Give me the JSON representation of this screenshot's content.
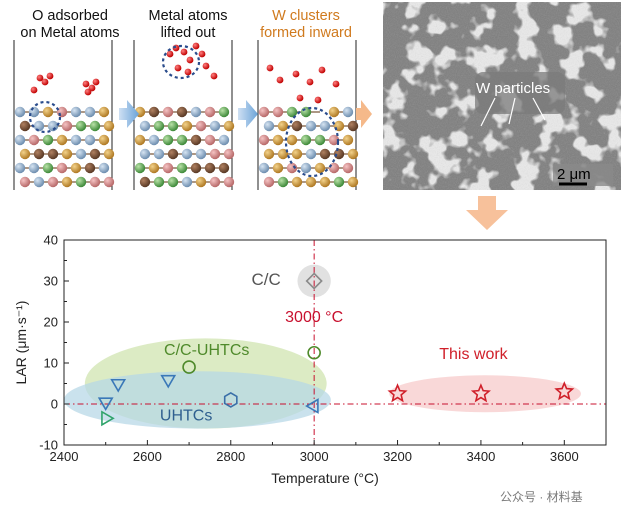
{
  "simulation": {
    "labels": [
      {
        "line1": "O adsorbed",
        "line2": "on Metal atoms"
      },
      {
        "line1": "Metal atoms",
        "line2": "lifted out"
      },
      {
        "line1": "W clusters",
        "line2": "formed inward"
      }
    ],
    "label_colors": [
      "#111111",
      "#111111",
      "#d07a1e"
    ]
  },
  "sem": {
    "annotation": "W particles",
    "scale_bar": "2 μm"
  },
  "watermark": "公众号 · 材料基",
  "chart_data": {
    "type": "scatter",
    "xlabel": "Temperature (°C)",
    "ylabel": "LAR (μm·s⁻¹)",
    "xlim": [
      2400,
      3700
    ],
    "ylim": [
      -10,
      40
    ],
    "xticks": [
      2400,
      2600,
      2800,
      3000,
      3200,
      3400,
      3600
    ],
    "yticks": [
      -10,
      0,
      10,
      20,
      30,
      40
    ],
    "reference_lines": {
      "x": 3000,
      "y": 0,
      "color": "#c8102e"
    },
    "annotations": [
      {
        "text": "3000 °C",
        "x": 3000,
        "y": 20,
        "color": "#c8102e"
      },
      {
        "text": "C/C",
        "x": 2920,
        "y": 29,
        "color": "#555555"
      },
      {
        "text": "C/C-UHTCs",
        "x": 2640,
        "y": 12,
        "color": "#4f8a2b"
      },
      {
        "text": "UHTCs",
        "x": 2630,
        "y": -4,
        "color": "#2f5f8f"
      },
      {
        "text": "This work",
        "x": 3300,
        "y": 11,
        "color": "#d0202a"
      }
    ],
    "series": [
      {
        "name": "C/C",
        "marker": "diamond",
        "color": "#8a8a8a",
        "points": [
          [
            3000,
            30
          ]
        ]
      },
      {
        "name": "C/C-UHTCs",
        "marker": "circle",
        "color": "#4f8a2b",
        "points": [
          [
            2700,
            9
          ],
          [
            3000,
            12.5
          ]
        ]
      },
      {
        "name": "UHTCs",
        "marker": "triangle-down",
        "color": "#3a78b8",
        "points": [
          [
            2530,
            5
          ],
          [
            2650,
            6
          ],
          [
            2500,
            0.5
          ]
        ]
      },
      {
        "name": "UHTCs",
        "marker": "hexagon",
        "color": "#3a6fa8",
        "points": [
          [
            2800,
            1
          ]
        ]
      },
      {
        "name": "UHTCs",
        "marker": "triangle-left",
        "color": "#3a78b8",
        "points": [
          [
            3000,
            -0.5
          ]
        ]
      },
      {
        "name": "UHTCs",
        "marker": "triangle-right",
        "color": "#2fa36b",
        "points": [
          [
            2500,
            -3.5
          ]
        ]
      },
      {
        "name": "This work",
        "marker": "star",
        "color": "#d0202a",
        "points": [
          [
            3200,
            2.5
          ],
          [
            3400,
            2.5
          ],
          [
            3600,
            3
          ]
        ]
      }
    ],
    "regions": [
      {
        "name": "C/C",
        "color": "#d6d6d6",
        "cx": 3000,
        "cy": 30,
        "rx": 40,
        "ry": 4
      },
      {
        "name": "C/C-UHTCs",
        "color": "#cfe3ad",
        "cx": 2740,
        "cy": 5,
        "rx": 290,
        "ry": 11
      },
      {
        "name": "UHTCs",
        "color": "#b6d7e6",
        "cx": 2720,
        "cy": 1,
        "rx": 320,
        "ry": 7
      },
      {
        "name": "This work",
        "color": "#f7c9c9",
        "cx": 3410,
        "cy": 2.5,
        "rx": 230,
        "ry": 4.5
      }
    ]
  }
}
